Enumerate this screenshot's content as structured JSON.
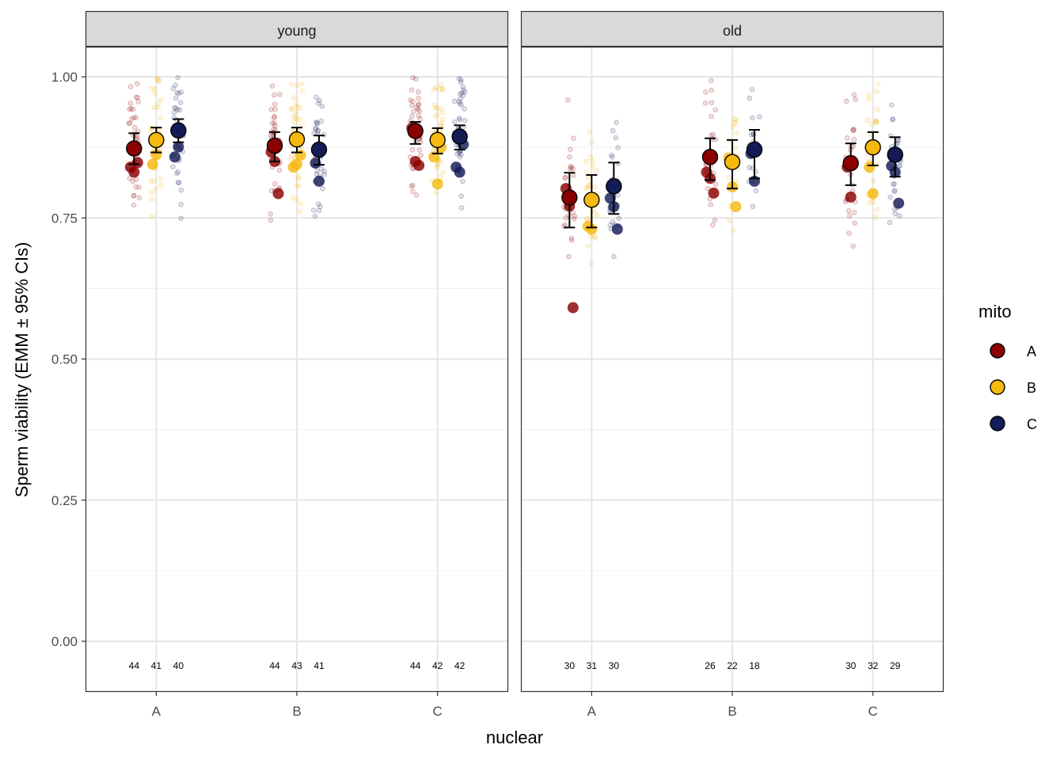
{
  "chart_data": {
    "type": "scatter",
    "ylabel": "Sperm viability (EMM ± 95% CIs)",
    "xlabel": "nuclear",
    "ylim": [
      -0.09,
      1.06
    ],
    "yticks": [
      0.0,
      0.25,
      0.5,
      0.75,
      1.0
    ],
    "ytick_labels": [
      "0.00",
      "0.25",
      "0.50",
      "0.75",
      "1.00"
    ],
    "categories": [
      "A",
      "B",
      "C"
    ],
    "panels": [
      {
        "label": "young",
        "emm": {
          "A": {
            "A": [
              0.873,
              0.845,
              0.9
            ],
            "B": [
              0.888,
              0.866,
              0.91
            ],
            "C": [
              0.905,
              0.884,
              0.925
            ]
          },
          "B": {
            "A": [
              0.878,
              0.85,
              0.902
            ],
            "B": [
              0.889,
              0.866,
              0.91
            ],
            "C": [
              0.871,
              0.844,
              0.896
            ]
          },
          "C": {
            "A": [
              0.904,
              0.881,
              0.92
            ],
            "B": [
              0.888,
              0.864,
              0.909
            ],
            "C": [
              0.894,
              0.871,
              0.914
            ]
          }
        },
        "means": {
          "A": {
            "A": [
              0.84,
              0.831,
              0.848
            ],
            "B": [
              0.845,
              0.862
            ],
            "C": [
              0.858,
              0.876
            ]
          },
          "B": {
            "A": [
              0.867,
              0.85,
              0.793
            ],
            "B": [
              0.84,
              0.845,
              0.861
            ],
            "C": [
              0.847,
              0.815
            ]
          },
          "C": {
            "A": [
              0.909,
              0.85,
              0.843
            ],
            "B": [
              0.858,
              0.81,
              0.875
            ],
            "C": [
              0.84,
              0.831,
              0.88
            ]
          }
        },
        "n": {
          "A": [
            44,
            41,
            40
          ],
          "B": [
            44,
            43,
            41
          ],
          "C": [
            44,
            42,
            42
          ]
        }
      },
      {
        "label": "old",
        "emm": {
          "A": {
            "A": [
              0.786,
              0.733,
              0.83
            ],
            "B": [
              0.782,
              0.733,
              0.826
            ],
            "C": [
              0.806,
              0.757,
              0.848
            ]
          },
          "B": {
            "A": [
              0.858,
              0.817,
              0.891
            ],
            "B": [
              0.849,
              0.802,
              0.888
            ],
            "C": [
              0.871,
              0.82,
              0.906
            ]
          },
          "C": {
            "A": [
              0.847,
              0.808,
              0.882
            ],
            "B": [
              0.875,
              0.843,
              0.902
            ],
            "C": [
              0.862,
              0.823,
              0.893
            ]
          }
        },
        "means": {
          "A": {
            "A": [
              0.802,
              0.771,
              0.591
            ],
            "B": [
              0.735,
              0.73
            ],
            "C": [
              0.785,
              0.77,
              0.73
            ]
          },
          "B": {
            "A": [
              0.831,
              0.82,
              0.794
            ],
            "B": [
              0.856,
              0.805,
              0.77
            ],
            "C": [
              0.864,
              0.815
            ]
          },
          "C": {
            "A": [
              0.84,
              0.787
            ],
            "B": [
              0.84,
              0.793
            ],
            "C": [
              0.842,
              0.831,
              0.776
            ]
          }
        },
        "n": {
          "A": [
            30,
            31,
            30
          ],
          "B": [
            26,
            22,
            18
          ],
          "C": [
            30,
            32,
            29
          ]
        }
      }
    ],
    "legend": {
      "title": "mito",
      "entries": [
        {
          "label": "A",
          "color": "#8b0000"
        },
        {
          "label": "B",
          "color": "#f5b90f"
        },
        {
          "label": "C",
          "color": "#141c57"
        }
      ]
    }
  }
}
